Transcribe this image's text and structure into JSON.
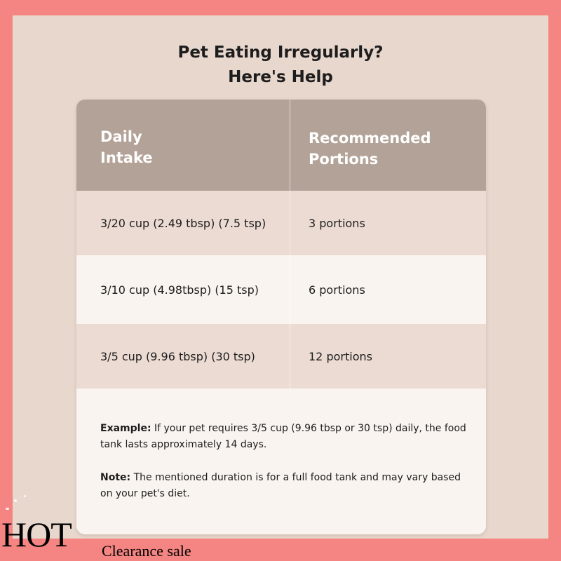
{
  "title": {
    "line1": "Pet Eating Irregularly?",
    "line2": "Here's Help"
  },
  "table": {
    "headers": [
      "Daily\nIntake",
      "Recommended\nPortions"
    ],
    "header_1_line1": "Daily",
    "header_1_line2": "Intake",
    "header_2_line1": "Recommended",
    "header_2_line2": "Portions",
    "rows": [
      {
        "intake": "3/20 cup (2.49 tbsp) (7.5 tsp)",
        "portions": "3 portions"
      },
      {
        "intake": "3/10 cup (4.98tbsp) (15 tsp)",
        "portions": "6 portions"
      },
      {
        "intake": "3/5 cup (9.96 tbsp) (30 tsp)",
        "portions": "12 portions"
      }
    ]
  },
  "notes": {
    "example_label": "Example:",
    "example_text": " If your pet requires 3/5 cup (9.96 tbsp or 30 tsp) daily, the food tank lasts approximately 14 days.",
    "note_label": "Note:",
    "note_text": " The mentioned duration is for a full food tank and may vary based on your pet's diet."
  },
  "banner": {
    "hot": "HOT",
    "sale": "Clearance sale"
  },
  "colors": {
    "frame": "#f58582",
    "background": "#e8d7cd",
    "header": "#b3a297",
    "row_shaded": "#ebdbd3",
    "row_light": "#f9f4ef"
  }
}
